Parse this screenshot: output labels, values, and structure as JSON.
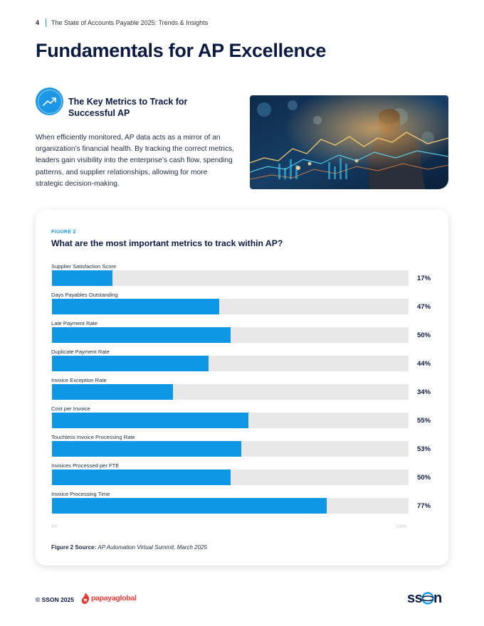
{
  "header": {
    "page_number": "4",
    "title": "The State of Accounts Payable 2025: Trends & Insights"
  },
  "page_title": "Fundamentals for AP Excellence",
  "section": {
    "icon": "trending-up-icon",
    "title": "The Key Metrics to Track for Successful AP",
    "intro": "When efficiently monitored, AP data acts as a mirror of an organization’s financial health. By tracking the correct metrics, leaders gain visibility into the enterprise’s cash flow, spending patterns, and supplier relationships, allowing for more strategic decision-making."
  },
  "figure": {
    "label": "FIGURE 2",
    "source_label": "Figure 2 Source:",
    "source_text": "AP Automation Virtual Summit, March 2025"
  },
  "chart_data": {
    "type": "bar",
    "orientation": "horizontal",
    "title": "What are the most important metrics to track within AP?",
    "categories": [
      "Supplier Satisfaction Score",
      "Days Payables Outstanding",
      "Late Payment Rate",
      "Duplicate Payment Rate",
      "Invoice Exception Rate",
      "Cost per Invoice",
      "Touchless Invoice Processing Rate",
      "Invoices Processed per FTE",
      "Invoice Processing Time"
    ],
    "values": [
      17,
      47,
      50,
      44,
      34,
      55,
      53,
      50,
      77
    ],
    "value_labels": [
      "17%",
      "47%",
      "50%",
      "44%",
      "34%",
      "55%",
      "53%",
      "50%",
      "77%"
    ],
    "xlim": [
      0,
      100
    ],
    "axis_min_label": "0%",
    "axis_max_label": "100%",
    "bar_color": "#0f97e6",
    "track_color": "#e8e8e8"
  },
  "footer": {
    "copyright": "© SSON 2025",
    "partner_logo": "papayaglobal",
    "brand_logo": "SSON"
  },
  "colors": {
    "accent": "#1a9be8",
    "navy": "#0b1a45",
    "papaya": "#ee3a32"
  }
}
